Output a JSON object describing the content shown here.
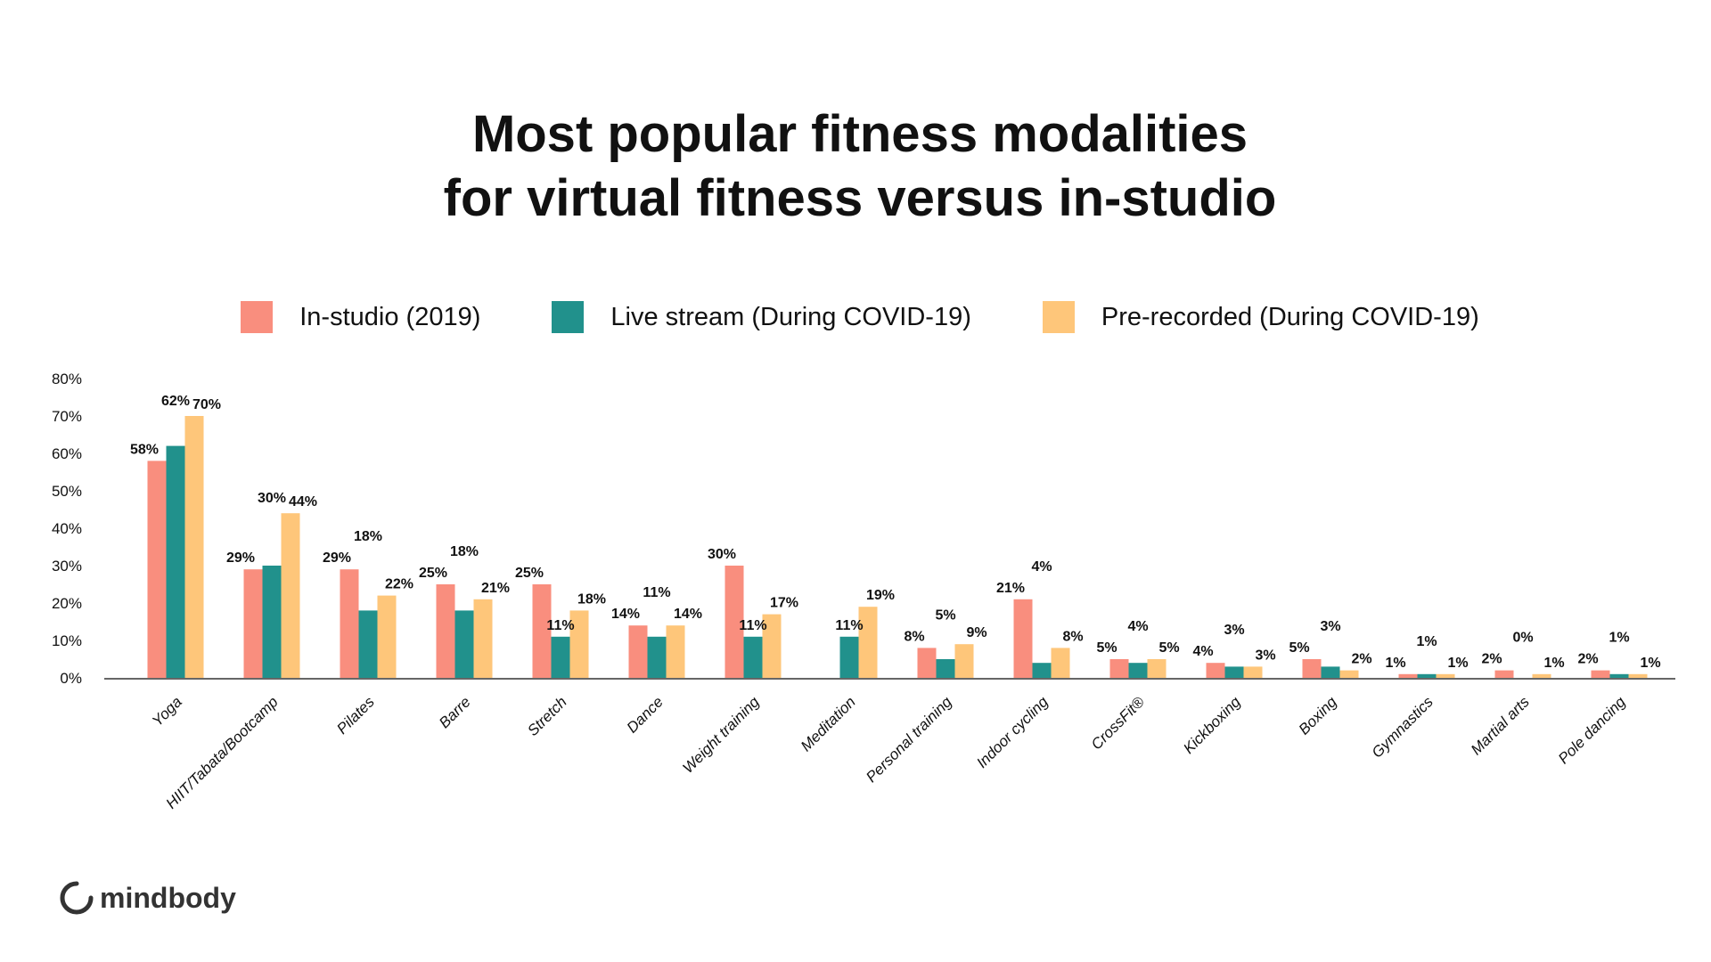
{
  "chart_data": {
    "type": "bar",
    "title_lines": [
      "Most popular fitness modalities",
      "for virtual fitness versus in-studio"
    ],
    "categories": [
      "Yoga",
      "HIIT/Tabata/Bootcamp",
      "Pilates",
      "Barre",
      "Stretch",
      "Dance",
      "Weight training",
      "Meditation",
      "Personal training",
      "Indoor cycling",
      "CrossFit®",
      "Kickboxing",
      "Boxing",
      "Gymnastics",
      "Martial arts",
      "Pole dancing"
    ],
    "series": [
      {
        "name": "In-studio (2019)",
        "color": "#F98E7E",
        "values": [
          58,
          29,
          29,
          25,
          25,
          14,
          30,
          null,
          8,
          21,
          5,
          4,
          5,
          1,
          2,
          2
        ]
      },
      {
        "name": "Live stream (During COVID-19)",
        "color": "#21918C",
        "values": [
          62,
          30,
          18,
          18,
          11,
          11,
          11,
          11,
          5,
          4,
          4,
          3,
          3,
          1,
          0,
          1
        ]
      },
      {
        "name": "Pre-recorded (During COVID-19)",
        "color": "#FEC67A",
        "values": [
          70,
          44,
          22,
          21,
          18,
          14,
          17,
          19,
          9,
          8,
          5,
          3,
          2,
          1,
          1,
          1
        ]
      }
    ],
    "yticks": [
      "0%",
      "10%",
      "20%",
      "30%",
      "40%",
      "50%",
      "60%",
      "70%",
      "80%"
    ],
    "ylim": [
      0,
      80
    ],
    "unit": "%",
    "grid": false,
    "legend_position": "top"
  },
  "brand": {
    "logo_text": "mindbody"
  }
}
